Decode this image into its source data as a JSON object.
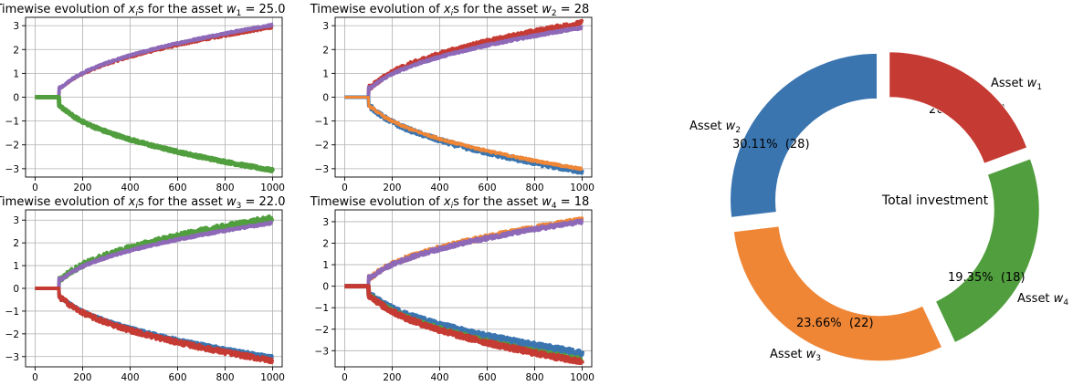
{
  "colors": {
    "blue": "#3a75b0",
    "orange": "#ef8636",
    "green": "#519e3e",
    "red": "#c53a32",
    "purple": "#8d69b8",
    "grid": "#b0b0b0"
  },
  "chart_data": [
    {
      "type": "line",
      "title": "Timewise evolution of x_is for the asset w_1 = 25.0",
      "title_parts": {
        "prefix": "Timewise evolution of ",
        "x": "x",
        "xsub": "i",
        "mid": "s for the asset ",
        "w": "w",
        "wsub": "1",
        "suffix": " = 25.0"
      },
      "xlim": [
        -40,
        1040
      ],
      "ylim": [
        -3.35,
        3.35
      ],
      "xticks": [
        0,
        200,
        400,
        600,
        800,
        1000
      ],
      "yticks": [
        -3,
        -2,
        -1,
        0,
        1,
        2,
        3
      ],
      "split_t": 100,
      "grid": true,
      "series": [
        {
          "color_key": "red",
          "branch": "upper",
          "scale": 2.92,
          "noise": 0.04,
          "width": 3
        },
        {
          "color_key": "purple",
          "branch": "upper",
          "scale": 3.03,
          "noise": 0.03,
          "width": 4
        },
        {
          "color_key": "green",
          "branch": "lower",
          "scale": 3.07,
          "noise": 0.05,
          "width": 5
        }
      ]
    },
    {
      "type": "line",
      "title": "Timewise evolution of x_is for the asset w_2 = 28",
      "title_parts": {
        "prefix": "Timewise evolution of ",
        "x": "x",
        "xsub": "i",
        "mid": "s for the asset ",
        "w": "w",
        "wsub": "2",
        "suffix": " = 28"
      },
      "xlim": [
        -40,
        1040
      ],
      "ylim": [
        -3.35,
        3.35
      ],
      "xticks": [
        0,
        200,
        400,
        600,
        800,
        1000
      ],
      "yticks": [
        -3,
        -2,
        -1,
        0,
        1,
        2,
        3
      ],
      "split_t": 100,
      "grid": true,
      "series": [
        {
          "color_key": "red",
          "branch": "upper",
          "scale": 3.12,
          "noise": 0.09,
          "width": 4
        },
        {
          "color_key": "purple",
          "branch": "upper",
          "scale": 2.92,
          "noise": 0.04,
          "width": 4
        },
        {
          "color_key": "blue",
          "branch": "lower",
          "scale": 3.12,
          "noise": 0.09,
          "width": 4
        },
        {
          "color_key": "orange",
          "branch": "lower",
          "scale": 3.02,
          "noise": 0.05,
          "width": 3
        }
      ]
    },
    {
      "type": "line",
      "title": "Timewise evolution of x_is for the asset w_3 = 22.0",
      "title_parts": {
        "prefix": "Timewise evolution of ",
        "x": "x",
        "xsub": "i",
        "mid": "s for the asset ",
        "w": "w",
        "wsub": "3",
        "suffix": " = 22.0"
      },
      "xlim": [
        -40,
        1040
      ],
      "ylim": [
        -3.45,
        3.45
      ],
      "xticks": [
        0,
        200,
        400,
        600,
        800,
        1000
      ],
      "yticks": [
        -3,
        -2,
        -1,
        0,
        1,
        2,
        3
      ],
      "split_t": 100,
      "grid": true,
      "series": [
        {
          "color_key": "green",
          "branch": "upper",
          "scale": 3.08,
          "noise": 0.12,
          "width": 4
        },
        {
          "color_key": "purple",
          "branch": "upper",
          "scale": 2.88,
          "noise": 0.04,
          "width": 4
        },
        {
          "color_key": "blue",
          "branch": "lower",
          "scale": 3.02,
          "noise": 0.05,
          "width": 4
        },
        {
          "color_key": "red",
          "branch": "lower",
          "scale": 3.18,
          "noise": 0.1,
          "width": 4
        }
      ]
    },
    {
      "type": "line",
      "title": "Timewise evolution of x_is for the asset w_4 = 18",
      "title_parts": {
        "prefix": "Timewise evolution of ",
        "x": "x",
        "xsub": "i",
        "mid": "s for the asset ",
        "w": "w",
        "wsub": "4",
        "suffix": " = 18"
      },
      "xlim": [
        -40,
        1040
      ],
      "ylim": [
        -3.75,
        3.55
      ],
      "xticks": [
        0,
        200,
        400,
        600,
        800,
        1000
      ],
      "yticks": [
        -3,
        -2,
        -1,
        0,
        1,
        2,
        3
      ],
      "split_t": 100,
      "grid": true,
      "series": [
        {
          "color_key": "orange",
          "branch": "upper",
          "scale": 3.08,
          "noise": 0.1,
          "width": 4
        },
        {
          "color_key": "purple",
          "branch": "upper",
          "scale": 3.0,
          "noise": 0.08,
          "width": 4
        },
        {
          "color_key": "blue",
          "branch": "lower",
          "scale": 3.12,
          "noise": 0.12,
          "width": 5
        },
        {
          "color_key": "green",
          "branch": "lower",
          "scale": 3.42,
          "noise": 0.1,
          "width": 4
        },
        {
          "color_key": "red",
          "branch": "lower",
          "scale": 3.52,
          "noise": 0.1,
          "width": 5
        }
      ]
    },
    {
      "type": "pie",
      "donut": true,
      "center_label": "Total investment",
      "slices": [
        {
          "label_prefix": "Asset ",
          "label_var": "w",
          "label_sub": "1",
          "value": 25,
          "pct_label": "26.88%  (25)",
          "color_key": "blue"
        },
        {
          "label_prefix": "Asset ",
          "label_var": "w",
          "label_sub": "2",
          "value": 28,
          "pct_label": "30.11%  (28)",
          "color_key": "orange"
        },
        {
          "label_prefix": "Asset ",
          "label_var": "w",
          "label_sub": "3",
          "value": 22,
          "pct_label": "23.66%  (22)",
          "color_key": "green"
        },
        {
          "label_prefix": "Asset ",
          "label_var": "w",
          "label_sub": "4",
          "value": 18,
          "pct_label": "19.35%  (18)",
          "color_key": "red"
        }
      ]
    }
  ]
}
